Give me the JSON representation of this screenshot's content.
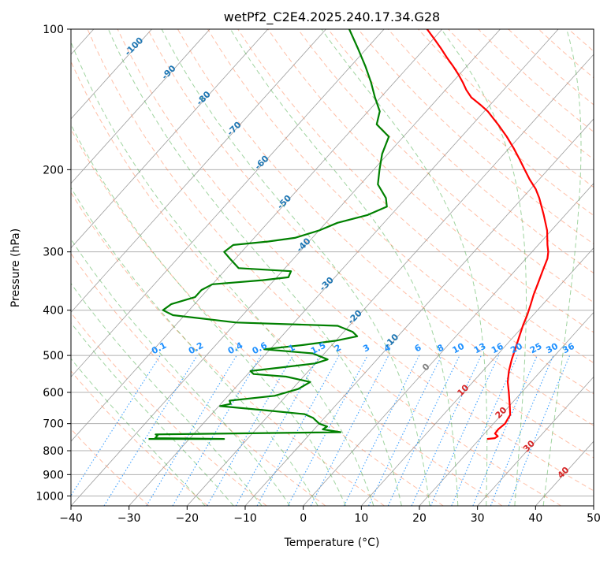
{
  "chart_data": {
    "type": "line",
    "title": "wetPf2_C2E4.2025.240.17.34.G28",
    "xlabel": "Temperature (°C)",
    "ylabel": "Pressure (hPa)",
    "xlim": [
      -40,
      50
    ],
    "ylim": [
      1050,
      100
    ],
    "y_scale": "log",
    "grid": true,
    "x_ticks": [
      -40,
      -30,
      -20,
      -10,
      0,
      10,
      20,
      30,
      40,
      50
    ],
    "y_ticks": [
      100,
      200,
      300,
      400,
      500,
      600,
      700,
      800,
      900,
      1000
    ],
    "colors": {
      "temperature": "#ff0000",
      "dewpoint": "#008000",
      "dry_adiabat": "#ff7f50",
      "moist_adiabat": "#2ca02c",
      "mixing_ratio": "#1e90ff",
      "isotherm": "#808080",
      "wetbulb_zero": "#d2b48c",
      "dry_adiabat_label": "#1f77b4",
      "isotherm_label": "#d62728"
    },
    "series": [
      {
        "key": "temperature",
        "points": [
          [
            755,
            21.3
          ],
          [
            752,
            22.5
          ],
          [
            745,
            22.7
          ],
          [
            735,
            21.8
          ],
          [
            720,
            21.7
          ],
          [
            700,
            22.0
          ],
          [
            670,
            21.5
          ],
          [
            640,
            20.0
          ],
          [
            600,
            17.8
          ],
          [
            570,
            16.0
          ],
          [
            540,
            14.5
          ],
          [
            510,
            13.2
          ],
          [
            480,
            12.0
          ],
          [
            450,
            10.7
          ],
          [
            430,
            9.8
          ],
          [
            410,
            9.0
          ],
          [
            390,
            8.0
          ],
          [
            370,
            6.9
          ],
          [
            350,
            5.9
          ],
          [
            330,
            4.8
          ],
          [
            310,
            3.7
          ],
          [
            300,
            2.8
          ],
          [
            290,
            1.6
          ],
          [
            270,
            -0.7
          ],
          [
            250,
            -3.7
          ],
          [
            230,
            -7.1
          ],
          [
            220,
            -9.1
          ],
          [
            210,
            -11.6
          ],
          [
            200,
            -14.0
          ],
          [
            190,
            -16.5
          ],
          [
            180,
            -19.2
          ],
          [
            170,
            -22.2
          ],
          [
            160,
            -25.6
          ],
          [
            150,
            -29.4
          ],
          [
            145,
            -31.8
          ],
          [
            140,
            -34.4
          ],
          [
            135,
            -36.4
          ],
          [
            130,
            -38.2
          ],
          [
            125,
            -40.2
          ],
          [
            120,
            -42.4
          ],
          [
            115,
            -44.8
          ],
          [
            110,
            -47.2
          ],
          [
            105,
            -49.8
          ],
          [
            100,
            -52.6
          ]
        ]
      },
      {
        "key": "dewpoint",
        "points": [
          [
            755,
            -37.0
          ],
          [
            755,
            -24.0
          ],
          [
            752,
            -36.0
          ],
          [
            745,
            -36.0
          ],
          [
            742,
            -36.0
          ],
          [
            738,
            -36.5
          ],
          [
            730,
            -5.0
          ],
          [
            720,
            -8.5
          ],
          [
            710,
            -8.2
          ],
          [
            700,
            -10.0
          ],
          [
            680,
            -12.0
          ],
          [
            668,
            -14.0
          ],
          [
            655,
            -21.5
          ],
          [
            642,
            -29.8
          ],
          [
            635,
            -28.3
          ],
          [
            625,
            -29.0
          ],
          [
            610,
            -22.0
          ],
          [
            590,
            -19.0
          ],
          [
            570,
            -18.0
          ],
          [
            555,
            -23.0
          ],
          [
            548,
            -29.0
          ],
          [
            540,
            -30.0
          ],
          [
            530,
            -25.0
          ],
          [
            520,
            -20.0
          ],
          [
            510,
            -18.5
          ],
          [
            495,
            -22.0
          ],
          [
            485,
            -31.0
          ],
          [
            475,
            -25.0
          ],
          [
            465,
            -20.0
          ],
          [
            455,
            -17.0
          ],
          [
            445,
            -18.5
          ],
          [
            432,
            -22.0
          ],
          [
            425,
            -40.0
          ],
          [
            410,
            -52.0
          ],
          [
            400,
            -54.5
          ],
          [
            388,
            -54.0
          ],
          [
            375,
            -51.0
          ],
          [
            362,
            -51.0
          ],
          [
            352,
            -50.0
          ],
          [
            345,
            -42.0
          ],
          [
            340,
            -38.0
          ],
          [
            330,
            -38.5
          ],
          [
            325,
            -48.0
          ],
          [
            310,
            -51.0
          ],
          [
            300,
            -53.0
          ],
          [
            290,
            -52.5
          ],
          [
            285,
            -47.0
          ],
          [
            280,
            -43.0
          ],
          [
            270,
            -40.0
          ],
          [
            260,
            -38.0
          ],
          [
            250,
            -34.0
          ],
          [
            240,
            -32.0
          ],
          [
            230,
            -33.5
          ],
          [
            215,
            -37.0
          ],
          [
            200,
            -39.0
          ],
          [
            185,
            -41.0
          ],
          [
            170,
            -42.5
          ],
          [
            160,
            -46.5
          ],
          [
            150,
            -48.0
          ],
          [
            140,
            -51.0
          ],
          [
            130,
            -54.0
          ],
          [
            120,
            -57.5
          ],
          [
            110,
            -61.5
          ],
          [
            100,
            -66.0
          ]
        ]
      }
    ],
    "dry_adiabat_labels": [
      "-100",
      "-90",
      "-80",
      "-70",
      "-60",
      "-50",
      "-40",
      "-30",
      "-20",
      "-10",
      "0",
      "10",
      "20",
      "30",
      "40"
    ],
    "mixing_ratio_labels": [
      "0.1",
      "0.2",
      "0.4",
      "0.6",
      "1",
      "1.5",
      "2",
      "3",
      "4",
      "6",
      "8",
      "10",
      "13",
      "16",
      "20",
      "25",
      "30",
      "36"
    ]
  }
}
